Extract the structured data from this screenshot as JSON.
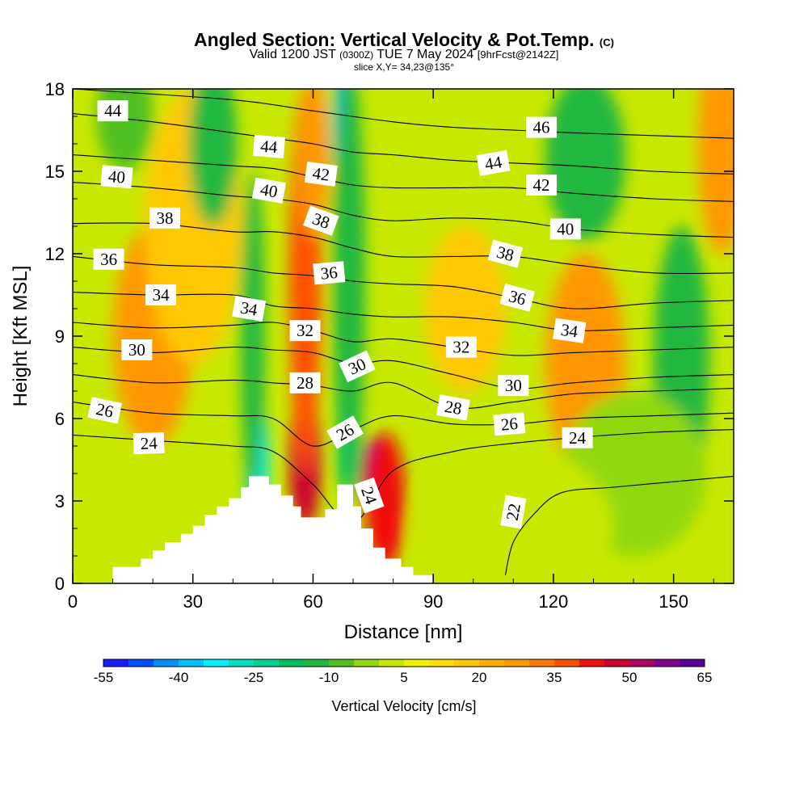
{
  "title": {
    "main": "Angled Section: Vertical Velocity & Pot.Temp.",
    "copyright": "(C)",
    "valid": "Valid 1200 JST",
    "zulu": "(0300Z)",
    "date": "TUE 7 May 2024",
    "fcst": "[9hrFcst@2142Z]",
    "slice": "slice X,Y= 34,23@135°"
  },
  "chart_data": {
    "type": "heatmap",
    "xlabel": "Distance [nm]",
    "ylabel": "Height [Kft MSL]",
    "xlim": [
      0,
      165
    ],
    "ylim": [
      0,
      18
    ],
    "xticks": [
      "0",
      "30",
      "60",
      "90",
      "120",
      "150"
    ],
    "xtick_values": [
      0,
      30,
      60,
      90,
      120,
      150
    ],
    "yticks": [
      "0",
      "3",
      "6",
      "9",
      "12",
      "15",
      "18"
    ],
    "ytick_values": [
      0,
      3,
      6,
      9,
      12,
      15,
      18
    ],
    "grid": false,
    "terrain_profile": [
      [
        10,
        0.6
      ],
      [
        17,
        0.9
      ],
      [
        20,
        1.2
      ],
      [
        23,
        1.5
      ],
      [
        27,
        1.8
      ],
      [
        30,
        2.1
      ],
      [
        33,
        2.5
      ],
      [
        36,
        2.8
      ],
      [
        39,
        3.1
      ],
      [
        42,
        3.5
      ],
      [
        44,
        3.9
      ],
      [
        49,
        3.9
      ],
      [
        52,
        3.6
      ],
      [
        55,
        3.2
      ],
      [
        57,
        2.8
      ],
      [
        59,
        2.4
      ],
      [
        61,
        2.4
      ],
      [
        63,
        2.7
      ],
      [
        66,
        3.6
      ],
      [
        70,
        3.6
      ],
      [
        72,
        2.8
      ],
      [
        75,
        2.0
      ],
      [
        78,
        1.3
      ],
      [
        82,
        0.9
      ],
      [
        85,
        0.6
      ],
      [
        90,
        0.3
      ]
    ],
    "velocity_cells": [
      {
        "x": 46,
        "y": 4.5,
        "value": -35,
        "rx": 3,
        "ry": 2.0
      },
      {
        "x": 45,
        "y": 9,
        "value": -15,
        "rx": 3,
        "ry": 6
      },
      {
        "x": 58,
        "y": 4.5,
        "value": 45,
        "rx": 4,
        "ry": 2.5
      },
      {
        "x": 58,
        "y": 11,
        "value": 38,
        "rx": 4,
        "ry": 7
      },
      {
        "x": 60,
        "y": 15.5,
        "value": 25,
        "rx": 4,
        "ry": 3
      },
      {
        "x": 68,
        "y": 16.5,
        "value": -38,
        "rx": 3,
        "ry": 2.5
      },
      {
        "x": 69,
        "y": 11,
        "value": -15,
        "rx": 4,
        "ry": 8
      },
      {
        "x": 68,
        "y": 4.8,
        "value": -20,
        "rx": 2,
        "ry": 1.5
      },
      {
        "x": 75,
        "y": 3.8,
        "value": 62,
        "rx": 3,
        "ry": 1.5
      },
      {
        "x": 78,
        "y": 3.0,
        "value": 40,
        "rx": 5,
        "ry": 2.5
      },
      {
        "x": 20,
        "y": 9,
        "value": 25,
        "rx": 10,
        "ry": 4
      },
      {
        "x": 30,
        "y": 13,
        "value": 15,
        "rx": 12,
        "ry": 5
      },
      {
        "x": 13,
        "y": 17,
        "value": -10,
        "rx": 7,
        "ry": 2
      },
      {
        "x": 35,
        "y": 16,
        "value": -15,
        "rx": 6,
        "ry": 3
      },
      {
        "x": 98,
        "y": 10,
        "value": 18,
        "rx": 10,
        "ry": 3
      },
      {
        "x": 128,
        "y": 8,
        "value": 25,
        "rx": 10,
        "ry": 4
      },
      {
        "x": 128,
        "y": 15.5,
        "value": -15,
        "rx": 10,
        "ry": 3
      },
      {
        "x": 152,
        "y": 8,
        "value": -15,
        "rx": 7,
        "ry": 5
      },
      {
        "x": 162,
        "y": 16,
        "value": 25,
        "rx": 6,
        "ry": 4
      },
      {
        "x": 140,
        "y": 4,
        "value": -5,
        "rx": 18,
        "ry": 3
      },
      {
        "x": 110,
        "y": 2,
        "value": 3,
        "rx": 25,
        "ry": 3
      }
    ],
    "isentropes": [
      {
        "label": "22",
        "points": [
          [
            108,
            0.3
          ],
          [
            110,
            1.5
          ],
          [
            115,
            2.5
          ],
          [
            122,
            3.3
          ],
          [
            135,
            3.5
          ],
          [
            150,
            3.7
          ],
          [
            165,
            3.9
          ]
        ],
        "label_pos": [
          110,
          2.6
        ],
        "label_rot": -80
      },
      {
        "label": "24",
        "points": [
          [
            0,
            5.4
          ],
          [
            20,
            5.2
          ],
          [
            40,
            5.0
          ],
          [
            50,
            4.8
          ],
          [
            60,
            3.6
          ],
          [
            70,
            2.2
          ],
          [
            80,
            4.1
          ],
          [
            95,
            4.8
          ],
          [
            110,
            5.1
          ],
          [
            125,
            5.3
          ],
          [
            145,
            5.5
          ],
          [
            165,
            5.6
          ]
        ],
        "label_pos": [
          126,
          5.3
        ],
        "label_rot": 0,
        "label2": "24",
        "label2_pos": [
          19,
          5.1
        ],
        "label2_rot": -2,
        "label3": "24",
        "label3_pos": [
          74,
          3.2
        ],
        "label3_rot": 70
      },
      {
        "label": "26",
        "points": [
          [
            0,
            6.6
          ],
          [
            20,
            6.2
          ],
          [
            40,
            6.1
          ],
          [
            50,
            6.0
          ],
          [
            60,
            5.0
          ],
          [
            70,
            5.6
          ],
          [
            80,
            6.1
          ],
          [
            95,
            5.8
          ],
          [
            110,
            5.8
          ],
          [
            125,
            6.0
          ],
          [
            145,
            6.1
          ],
          [
            165,
            6.2
          ]
        ],
        "label_pos": [
          8,
          6.3
        ],
        "label_rot": 12,
        "label2": "26",
        "label2_pos": [
          109,
          5.8
        ],
        "label2_rot": -5,
        "label3": "26",
        "label3_pos": [
          68,
          5.5
        ],
        "label3_rot": -30
      },
      {
        "label": "28",
        "points": [
          [
            0,
            7.6
          ],
          [
            20,
            7.3
          ],
          [
            40,
            7.4
          ],
          [
            50,
            7.3
          ],
          [
            60,
            7.2
          ],
          [
            70,
            7.0
          ],
          [
            80,
            7.3
          ],
          [
            95,
            6.4
          ],
          [
            110,
            6.6
          ],
          [
            125,
            6.9
          ],
          [
            145,
            7.0
          ],
          [
            165,
            7.1
          ]
        ],
        "label_pos": [
          58,
          7.3
        ],
        "label_rot": 0,
        "label2": "28",
        "label2_pos": [
          95,
          6.4
        ],
        "label2_rot": 10
      },
      {
        "label": "30",
        "points": [
          [
            0,
            8.6
          ],
          [
            20,
            8.4
          ],
          [
            40,
            8.6
          ],
          [
            50,
            8.5
          ],
          [
            60,
            8.4
          ],
          [
            70,
            8.0
          ],
          [
            80,
            8.1
          ],
          [
            95,
            7.6
          ],
          [
            110,
            7.1
          ],
          [
            125,
            7.3
          ],
          [
            145,
            7.5
          ],
          [
            165,
            7.6
          ]
        ],
        "label_pos": [
          16,
          8.5
        ],
        "label_rot": 0,
        "label2": "30",
        "label2_pos": [
          110,
          7.2
        ],
        "label2_rot": 0,
        "label3": "30",
        "label3_pos": [
          71,
          7.9
        ],
        "label3_rot": -25
      },
      {
        "label": "32",
        "points": [
          [
            0,
            9.5
          ],
          [
            20,
            9.3
          ],
          [
            40,
            9.4
          ],
          [
            50,
            9.5
          ],
          [
            60,
            9.2
          ],
          [
            70,
            8.8
          ],
          [
            80,
            8.9
          ],
          [
            95,
            8.6
          ],
          [
            110,
            8.3
          ],
          [
            125,
            8.4
          ],
          [
            145,
            8.5
          ],
          [
            165,
            8.6
          ]
        ],
        "label_pos": [
          58,
          9.2
        ],
        "label_rot": 0,
        "label2": "32",
        "label2_pos": [
          97,
          8.6
        ],
        "label2_rot": 0
      },
      {
        "label": "34",
        "points": [
          [
            0,
            10.6
          ],
          [
            20,
            10.5
          ],
          [
            40,
            10.5
          ],
          [
            50,
            10.1
          ],
          [
            60,
            10.0
          ],
          [
            70,
            9.8
          ],
          [
            80,
            9.7
          ],
          [
            95,
            9.7
          ],
          [
            110,
            9.5
          ],
          [
            125,
            9.2
          ],
          [
            145,
            9.3
          ],
          [
            165,
            9.4
          ]
        ],
        "label_pos": [
          22,
          10.5
        ],
        "label_rot": 0,
        "label2": "34",
        "label2_pos": [
          44,
          10.0
        ],
        "label2_rot": 10,
        "label3": "34",
        "label3_pos": [
          124,
          9.2
        ],
        "label3_rot": 8
      },
      {
        "label": "36",
        "points": [
          [
            0,
            11.9
          ],
          [
            20,
            11.6
          ],
          [
            40,
            11.5
          ],
          [
            50,
            11.3
          ],
          [
            60,
            11.2
          ],
          [
            70,
            11.0
          ],
          [
            80,
            10.9
          ],
          [
            95,
            10.8
          ],
          [
            110,
            10.4
          ],
          [
            125,
            10.0
          ],
          [
            145,
            10.2
          ],
          [
            165,
            10.3
          ]
        ],
        "label_pos": [
          9,
          11.8
        ],
        "label_rot": 0,
        "label2": "36",
        "label2_pos": [
          64,
          11.3
        ],
        "label2_rot": -5,
        "label3": "36",
        "label3_pos": [
          111,
          10.4
        ],
        "label3_rot": 15
      },
      {
        "label": "38",
        "points": [
          [
            0,
            13.1
          ],
          [
            20,
            13.1
          ],
          [
            40,
            12.8
          ],
          [
            50,
            12.8
          ],
          [
            60,
            12.6
          ],
          [
            70,
            12.2
          ],
          [
            80,
            11.9
          ],
          [
            95,
            11.9
          ],
          [
            110,
            11.9
          ],
          [
            125,
            11.6
          ],
          [
            145,
            11.3
          ],
          [
            165,
            11.3
          ]
        ],
        "label_pos": [
          23,
          13.3
        ],
        "label_rot": 0,
        "label2": "38",
        "label2_pos": [
          62,
          13.2
        ],
        "label2_rot": 20,
        "label3": "38",
        "label3_pos": [
          108,
          12.0
        ],
        "label3_rot": 15
      },
      {
        "label": "40",
        "points": [
          [
            0,
            14.6
          ],
          [
            20,
            14.4
          ],
          [
            40,
            14.1
          ],
          [
            50,
            14.0
          ],
          [
            60,
            13.8
          ],
          [
            70,
            13.4
          ],
          [
            80,
            13.2
          ],
          [
            95,
            13.3
          ],
          [
            110,
            13.2
          ],
          [
            125,
            12.9
          ],
          [
            145,
            12.7
          ],
          [
            165,
            12.6
          ]
        ],
        "label_pos": [
          11,
          14.8
        ],
        "label_rot": 5,
        "label2": "40",
        "label2_pos": [
          49,
          14.3
        ],
        "label2_rot": 10,
        "label3": "40",
        "label3_pos": [
          123,
          12.9
        ],
        "label3_rot": 0
      },
      {
        "label": "42",
        "points": [
          [
            0,
            15.6
          ],
          [
            20,
            15.4
          ],
          [
            40,
            15.2
          ],
          [
            50,
            15.1
          ],
          [
            60,
            14.8
          ],
          [
            70,
            14.5
          ],
          [
            80,
            14.4
          ],
          [
            95,
            14.4
          ],
          [
            110,
            14.4
          ],
          [
            125,
            14.2
          ],
          [
            145,
            14.0
          ],
          [
            165,
            13.9
          ]
        ],
        "label_pos": [
          62,
          14.9
        ],
        "label_rot": 8,
        "label2": "42",
        "label2_pos": [
          117,
          14.5
        ],
        "label2_rot": 0
      },
      {
        "label": "44",
        "points": [
          [
            0,
            17.1
          ],
          [
            20,
            16.8
          ],
          [
            40,
            16.4
          ],
          [
            50,
            16.2
          ],
          [
            60,
            16.0
          ],
          [
            70,
            15.7
          ],
          [
            80,
            15.6
          ],
          [
            95,
            15.4
          ],
          [
            110,
            15.3
          ],
          [
            125,
            15.2
          ],
          [
            145,
            15.0
          ],
          [
            165,
            14.9
          ]
        ],
        "label_pos": [
          10,
          17.2
        ],
        "label_rot": 0,
        "label2": "44",
        "label2_pos": [
          49,
          15.9
        ],
        "label2_rot": 5,
        "label3": "44",
        "label3_pos": [
          105,
          15.3
        ],
        "label3_rot": -10
      },
      {
        "label": "46",
        "points": [
          [
            0,
            18.0
          ],
          [
            40,
            17.6
          ],
          [
            60,
            17.2
          ],
          [
            80,
            16.8
          ],
          [
            95,
            16.6
          ],
          [
            110,
            16.5
          ],
          [
            125,
            16.4
          ],
          [
            145,
            16.3
          ],
          [
            165,
            16.2
          ]
        ],
        "label_pos": [
          117,
          16.6
        ],
        "label_rot": 0
      }
    ],
    "colorbar": {
      "label": "Vertical Velocity [cm/s]",
      "tick_labels": [
        "-55",
        "-40",
        "-25",
        "-10",
        "5",
        "20",
        "35",
        "50",
        "65"
      ],
      "tick_values": [
        -55,
        -40,
        -25,
        -10,
        5,
        20,
        35,
        50,
        65
      ],
      "step": 5,
      "colors": [
        "#1a1aff",
        "#0050ff",
        "#0090ff",
        "#00c0ff",
        "#00f0ff",
        "#00e0c0",
        "#00d090",
        "#00c060",
        "#20b840",
        "#50c020",
        "#90d810",
        "#c8e800",
        "#f2f200",
        "#ffe000",
        "#ffc800",
        "#ffb000",
        "#ff9800",
        "#ff7800",
        "#ff5000",
        "#f01010",
        "#d00030",
        "#b00060",
        "#800090",
        "#5a009a"
      ]
    }
  }
}
